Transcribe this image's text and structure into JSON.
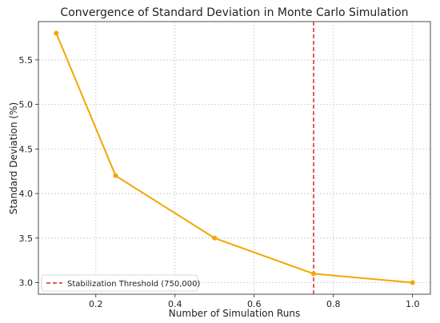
{
  "chart_data": {
    "type": "line",
    "title": "Convergence of Standard Deviation in Monte Carlo Simulation",
    "xlabel": "Number of Simulation Runs",
    "ylabel": "Standard Deviation (%)",
    "xlim": [
      0.055,
      1.045
    ],
    "ylim": [
      2.87,
      5.93
    ],
    "x_ticks": [
      0.2,
      0.4,
      0.6,
      0.8,
      1.0
    ],
    "x_tick_labels": [
      "0.2",
      "0.4",
      "0.6",
      "0.8",
      "1.0"
    ],
    "y_ticks": [
      3.0,
      3.5,
      4.0,
      4.5,
      5.0,
      5.5
    ],
    "y_tick_labels": [
      "3.0",
      "3.5",
      "4.0",
      "4.5",
      "5.0",
      "5.5"
    ],
    "grid": true,
    "series": [
      {
        "x": [
          0.1,
          0.25,
          0.5,
          0.75,
          1.0
        ],
        "y": [
          5.8,
          4.2,
          3.5,
          3.1,
          3.0
        ],
        "color": "#f5a500",
        "marker": "circle"
      }
    ],
    "reference_lines": [
      {
        "orientation": "vertical",
        "x": 0.75,
        "name": "Stabilization Threshold (750,000)",
        "color": "#d62728",
        "style": "dashed"
      }
    ],
    "legend": {
      "placement": "lower-left",
      "entries": [
        "Stabilization Threshold (750,000)"
      ]
    }
  }
}
